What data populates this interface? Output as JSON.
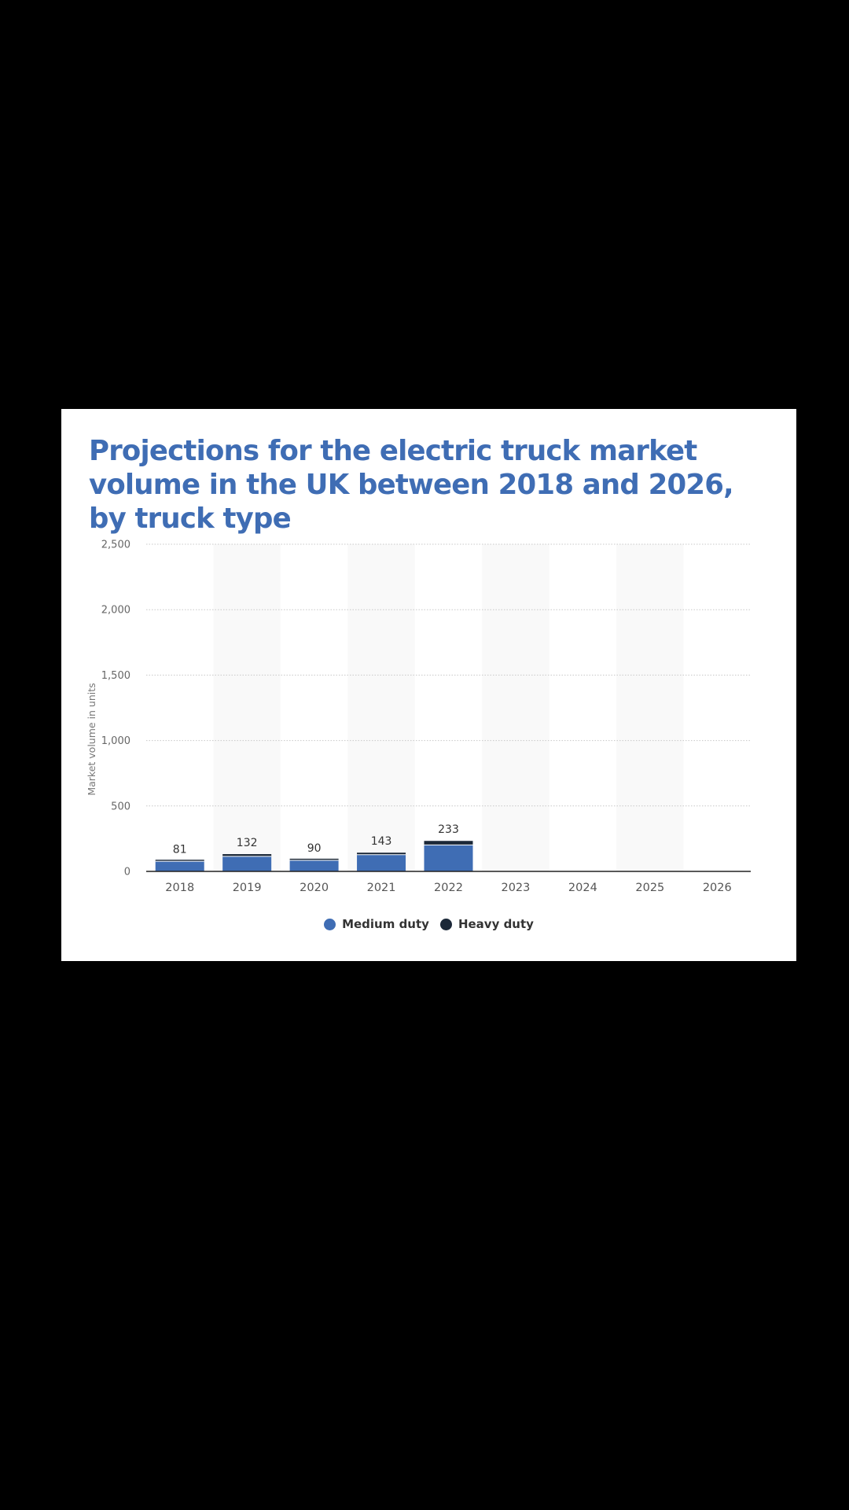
{
  "chart_data": {
    "type": "bar",
    "stacked": true,
    "title": "Projections for the electric truck market volume in the UK between 2018 and 2026, by truck type",
    "xlabel": "",
    "ylabel": "Market volume in units",
    "categories": [
      "2018",
      "2019",
      "2020",
      "2021",
      "2022",
      "2023",
      "2024",
      "2025",
      "2026"
    ],
    "series": [
      {
        "name": "Medium duty",
        "color": "#3f6db4",
        "values": [
          77,
          115,
          85,
          128,
          202,
          0,
          0,
          0,
          0
        ]
      },
      {
        "name": "Heavy duty",
        "color": "#1b2838",
        "values": [
          4,
          17,
          5,
          15,
          31,
          0,
          0,
          0,
          0
        ]
      }
    ],
    "totals": [
      81,
      132,
      90,
      143,
      233,
      null,
      null,
      null,
      null
    ],
    "total_labels": [
      "81",
      "132",
      "90",
      "143",
      "233",
      "",
      "",
      "",
      ""
    ],
    "ylim": [
      0,
      2500
    ],
    "yticks": [
      0,
      500,
      1000,
      1500,
      2000,
      2500
    ],
    "ytick_labels": [
      "0",
      "500",
      "1,000",
      "1,500",
      "2,000",
      "2,500"
    ],
    "grid": true,
    "legend_position": "bottom-center"
  }
}
